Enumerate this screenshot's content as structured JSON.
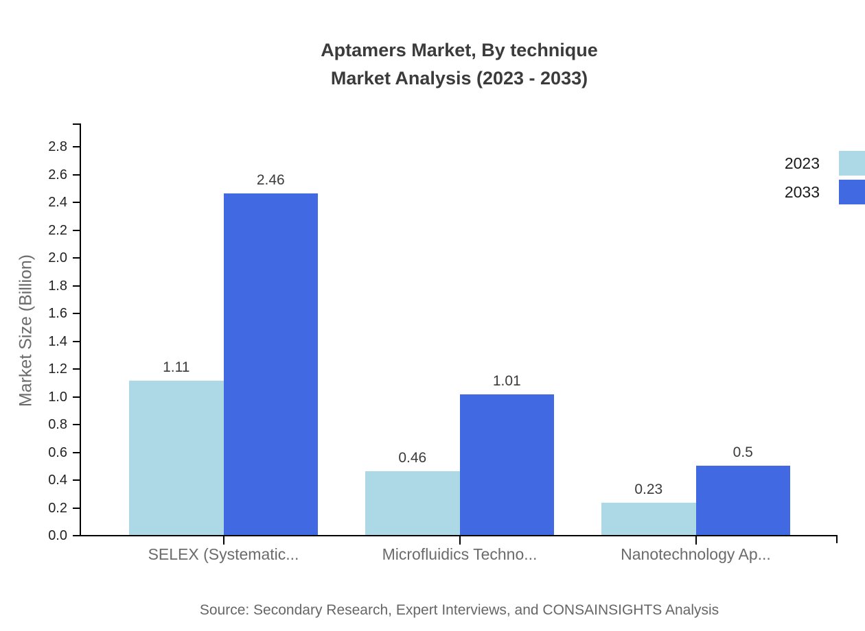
{
  "header": {
    "title_line1": "Aptamers Market, By technique",
    "title_line2": "Market Analysis (2023 - 2033)"
  },
  "footer": {
    "source": "Source: Secondary Research, Expert Interviews, and CONSAINSIGHTS Analysis"
  },
  "chart_data": {
    "type": "bar",
    "title": "Aptamers Market, By technique Market Analysis (2023 - 2033)",
    "categories": [
      "SELEX (Systematic...",
      "Microfluidics Techno...",
      "Nanotechnology Ap..."
    ],
    "series": [
      {
        "name": "2023",
        "color": "#ADD8E6",
        "values": [
          1.11,
          0.46,
          0.23
        ]
      },
      {
        "name": "2033",
        "color": "#4169E1",
        "values": [
          2.46,
          1.01,
          0.5
        ]
      }
    ],
    "xlabel": "",
    "ylabel": "Market Size (Billion)",
    "ylim": [
      0.0,
      2.9
    ],
    "ytick_step": 0.2,
    "yticks": [
      "0.0",
      "0.2",
      "0.4",
      "0.6",
      "0.8",
      "1.0",
      "1.2",
      "1.4",
      "1.6",
      "1.8",
      "2.0",
      "2.2",
      "2.4",
      "2.6",
      "2.8"
    ],
    "grid": false,
    "legend_position": "top-right-edge",
    "value_label_color": "#3a3a3a",
    "axis_color": "#000000"
  }
}
